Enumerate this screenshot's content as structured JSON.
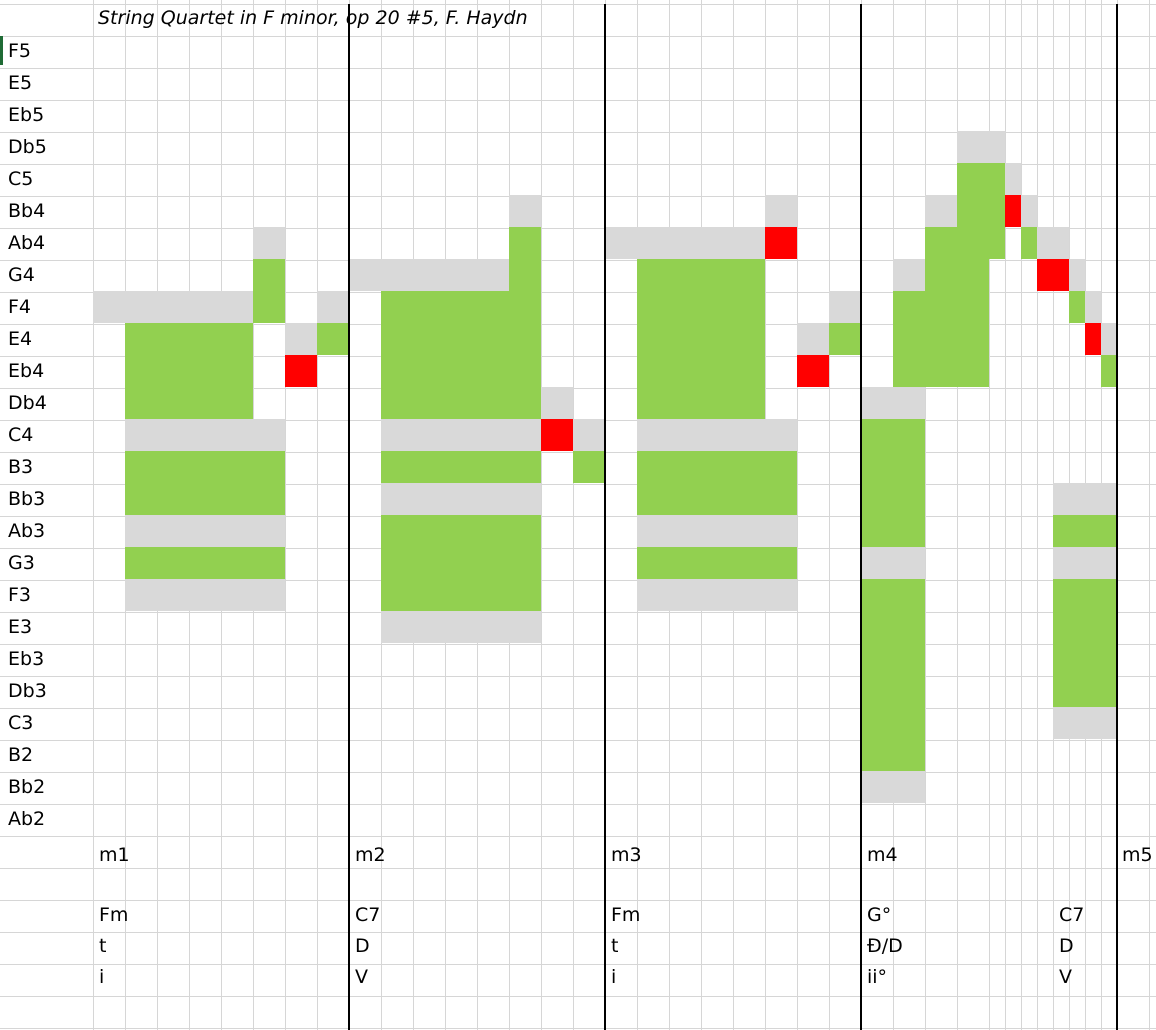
{
  "title": "String Quartet in F minor, op 20 #5, F.  Haydn",
  "colors": {
    "chord_tone": "#92d050",
    "non_chord_tone": "#ff0000",
    "held_tone": "#d9d9d9",
    "gridline": "#d6d6d6",
    "barline": "#000000",
    "selection": "#1f6b35"
  },
  "pitches": [
    "F5",
    "E5",
    "Eb5",
    "Db5",
    "C5",
    "Bb4",
    "Ab4",
    "G4",
    "F4",
    "E4",
    "Eb4",
    "Db4",
    "C4",
    "B3",
    "Bb3",
    "Ab3",
    "G3",
    "F3",
    "E3",
    "Eb3",
    "Db3",
    "C3",
    "B2",
    "Bb2",
    "Ab2"
  ],
  "measures": [
    {
      "label": "m1",
      "chord": "Fm",
      "function": "t",
      "roman": "i"
    },
    {
      "label": "m2",
      "chord": "C7",
      "function": "D",
      "roman": "V"
    },
    {
      "label": "m3",
      "chord": "Fm",
      "function": "t",
      "roman": "i"
    },
    {
      "label": "m4",
      "chord": "G°",
      "function": "Đ/D",
      "roman": "ii°"
    },
    {
      "label": "m5"
    }
  ],
  "extra_harmony": {
    "chord": "C7",
    "function": "D",
    "roman": "V"
  },
  "notes": [
    {
      "pitch": "F4",
      "start": 0,
      "end": 5,
      "kind": "held"
    },
    {
      "pitch": "E4",
      "start": 1,
      "end": 5,
      "kind": "chord"
    },
    {
      "pitch": "Eb4",
      "start": 1,
      "end": 5,
      "kind": "chord"
    },
    {
      "pitch": "Db4",
      "start": 1,
      "end": 5,
      "kind": "chord"
    },
    {
      "pitch": "C4",
      "start": 1,
      "end": 6,
      "kind": "held"
    },
    {
      "pitch": "B3",
      "start": 1,
      "end": 6,
      "kind": "chord"
    },
    {
      "pitch": "Bb3",
      "start": 1,
      "end": 6,
      "kind": "chord"
    },
    {
      "pitch": "Ab3",
      "start": 1,
      "end": 6,
      "kind": "held"
    },
    {
      "pitch": "G3",
      "start": 1,
      "end": 6,
      "kind": "chord"
    },
    {
      "pitch": "F3",
      "start": 1,
      "end": 6,
      "kind": "held"
    },
    {
      "pitch": "Ab4",
      "start": 5,
      "end": 6,
      "kind": "held"
    },
    {
      "pitch": "G4",
      "start": 5,
      "end": 6,
      "kind": "chord"
    },
    {
      "pitch": "F4",
      "start": 5,
      "end": 6,
      "kind": "chord"
    },
    {
      "pitch": "E4",
      "start": 6,
      "end": 7,
      "kind": "held"
    },
    {
      "pitch": "Eb4",
      "start": 6,
      "end": 7,
      "kind": "nonchord"
    },
    {
      "pitch": "F4",
      "start": 7,
      "end": 8,
      "kind": "held"
    },
    {
      "pitch": "E4",
      "start": 7,
      "end": 8,
      "kind": "chord"
    },
    {
      "pitch": "G4",
      "start": 8,
      "end": 13,
      "kind": "held"
    },
    {
      "pitch": "F4",
      "start": 9,
      "end": 14,
      "kind": "chord"
    },
    {
      "pitch": "E4",
      "start": 9,
      "end": 14,
      "kind": "chord"
    },
    {
      "pitch": "Eb4",
      "start": 9,
      "end": 14,
      "kind": "chord"
    },
    {
      "pitch": "Db4",
      "start": 9,
      "end": 14,
      "kind": "chord"
    },
    {
      "pitch": "C4",
      "start": 9,
      "end": 14,
      "kind": "held"
    },
    {
      "pitch": "B3",
      "start": 9,
      "end": 14,
      "kind": "chord"
    },
    {
      "pitch": "Bb3",
      "start": 9,
      "end": 14,
      "kind": "held"
    },
    {
      "pitch": "Ab3",
      "start": 9,
      "end": 14,
      "kind": "chord"
    },
    {
      "pitch": "G3",
      "start": 9,
      "end": 14,
      "kind": "chord"
    },
    {
      "pitch": "F3",
      "start": 9,
      "end": 14,
      "kind": "chord"
    },
    {
      "pitch": "E3",
      "start": 9,
      "end": 14,
      "kind": "held"
    },
    {
      "pitch": "Bb4",
      "start": 13,
      "end": 14,
      "kind": "held"
    },
    {
      "pitch": "Ab4",
      "start": 13,
      "end": 14,
      "kind": "chord"
    },
    {
      "pitch": "G4",
      "start": 13,
      "end": 14,
      "kind": "chord"
    },
    {
      "pitch": "Db4",
      "start": 14,
      "end": 15,
      "kind": "held"
    },
    {
      "pitch": "C4",
      "start": 14,
      "end": 15,
      "kind": "nonchord"
    },
    {
      "pitch": "C4",
      "start": 15,
      "end": 16,
      "kind": "held"
    },
    {
      "pitch": "B3",
      "start": 15,
      "end": 16,
      "kind": "chord"
    },
    {
      "pitch": "Ab4",
      "start": 16,
      "end": 21,
      "kind": "held"
    },
    {
      "pitch": "G4",
      "start": 17,
      "end": 21,
      "kind": "chord"
    },
    {
      "pitch": "F4",
      "start": 17,
      "end": 21,
      "kind": "chord"
    },
    {
      "pitch": "E4",
      "start": 17,
      "end": 21,
      "kind": "chord"
    },
    {
      "pitch": "Eb4",
      "start": 17,
      "end": 21,
      "kind": "chord"
    },
    {
      "pitch": "Db4",
      "start": 17,
      "end": 21,
      "kind": "chord"
    },
    {
      "pitch": "C4",
      "start": 17,
      "end": 22,
      "kind": "held"
    },
    {
      "pitch": "B3",
      "start": 17,
      "end": 22,
      "kind": "chord"
    },
    {
      "pitch": "Bb3",
      "start": 17,
      "end": 22,
      "kind": "chord"
    },
    {
      "pitch": "Ab3",
      "start": 17,
      "end": 22,
      "kind": "held"
    },
    {
      "pitch": "G3",
      "start": 17,
      "end": 22,
      "kind": "chord"
    },
    {
      "pitch": "F3",
      "start": 17,
      "end": 22,
      "kind": "held"
    },
    {
      "pitch": "Bb4",
      "start": 21,
      "end": 22,
      "kind": "held"
    },
    {
      "pitch": "Ab4",
      "start": 21,
      "end": 22,
      "kind": "nonchord"
    },
    {
      "pitch": "F4",
      "start": 23,
      "end": 24,
      "kind": "held"
    },
    {
      "pitch": "E4",
      "start": 22,
      "end": 23,
      "kind": "held"
    },
    {
      "pitch": "E4",
      "start": 23,
      "end": 24,
      "kind": "chord"
    },
    {
      "pitch": "Eb4",
      "start": 22,
      "end": 23,
      "kind": "nonchord"
    },
    {
      "pitch": "Db4",
      "start": 24,
      "end": 26,
      "kind": "held"
    },
    {
      "pitch": "C4",
      "start": 24,
      "end": 26,
      "kind": "chord"
    },
    {
      "pitch": "B3",
      "start": 24,
      "end": 26,
      "kind": "chord"
    },
    {
      "pitch": "Bb3",
      "start": 24,
      "end": 26,
      "kind": "chord"
    },
    {
      "pitch": "Ab3",
      "start": 24,
      "end": 26,
      "kind": "chord"
    },
    {
      "pitch": "G3",
      "start": 24,
      "end": 26,
      "kind": "held"
    },
    {
      "pitch": "F3",
      "start": 24,
      "end": 26,
      "kind": "chord"
    },
    {
      "pitch": "E3",
      "start": 24,
      "end": 26,
      "kind": "chord"
    },
    {
      "pitch": "Eb3",
      "start": 24,
      "end": 26,
      "kind": "chord"
    },
    {
      "pitch": "Db3",
      "start": 24,
      "end": 26,
      "kind": "chord"
    },
    {
      "pitch": "C3",
      "start": 24,
      "end": 26,
      "kind": "chord"
    },
    {
      "pitch": "B2",
      "start": 24,
      "end": 26,
      "kind": "chord"
    },
    {
      "pitch": "Bb2",
      "start": 24,
      "end": 26,
      "kind": "held"
    },
    {
      "pitch": "G4",
      "start": 25,
      "end": 26,
      "kind": "held"
    },
    {
      "pitch": "F4",
      "start": 25,
      "end": 28,
      "kind": "chord"
    },
    {
      "pitch": "E4",
      "start": 25,
      "end": 28,
      "kind": "chord"
    },
    {
      "pitch": "Eb4",
      "start": 25,
      "end": 28,
      "kind": "chord"
    },
    {
      "pitch": "Bb4",
      "start": 26,
      "end": 27,
      "kind": "held"
    },
    {
      "pitch": "Ab4",
      "start": 26,
      "end": 28,
      "kind": "chord"
    },
    {
      "pitch": "G4",
      "start": 26,
      "end": 28,
      "kind": "chord"
    },
    {
      "pitch": "Db5",
      "start": 27,
      "end": 28.5,
      "kind": "held"
    },
    {
      "pitch": "C5",
      "start": 27,
      "end": 28.5,
      "kind": "chord"
    },
    {
      "pitch": "Bb4",
      "start": 27,
      "end": 28.5,
      "kind": "chord"
    },
    {
      "pitch": "Ab4",
      "start": 28,
      "end": 28.5,
      "kind": "chord"
    },
    {
      "pitch": "C5",
      "start": 28.5,
      "end": 29,
      "kind": "held"
    },
    {
      "pitch": "Bb4",
      "start": 28.5,
      "end": 29,
      "kind": "nonchord"
    },
    {
      "pitch": "Bb4",
      "start": 29,
      "end": 29.5,
      "kind": "held"
    },
    {
      "pitch": "Ab4",
      "start": 29,
      "end": 29.5,
      "kind": "chord"
    },
    {
      "pitch": "Ab4",
      "start": 29.5,
      "end": 30.5,
      "kind": "held"
    },
    {
      "pitch": "G4",
      "start": 29.5,
      "end": 30.5,
      "kind": "nonchord"
    },
    {
      "pitch": "G4",
      "start": 30.5,
      "end": 31,
      "kind": "held"
    },
    {
      "pitch": "F4",
      "start": 30.5,
      "end": 31,
      "kind": "chord"
    },
    {
      "pitch": "F4",
      "start": 31,
      "end": 31.5,
      "kind": "held"
    },
    {
      "pitch": "E4",
      "start": 31,
      "end": 31.5,
      "kind": "nonchord"
    },
    {
      "pitch": "E4",
      "start": 31.5,
      "end": 32,
      "kind": "held"
    },
    {
      "pitch": "Eb4",
      "start": 31.5,
      "end": 32,
      "kind": "chord"
    },
    {
      "pitch": "Bb3",
      "start": 30,
      "end": 32,
      "kind": "held"
    },
    {
      "pitch": "Ab3",
      "start": 30,
      "end": 32,
      "kind": "chord"
    },
    {
      "pitch": "G3",
      "start": 30,
      "end": 32,
      "kind": "held"
    },
    {
      "pitch": "F3",
      "start": 30,
      "end": 32,
      "kind": "chord"
    },
    {
      "pitch": "E3",
      "start": 30,
      "end": 32,
      "kind": "chord"
    },
    {
      "pitch": "Eb3",
      "start": 30,
      "end": 32,
      "kind": "chord"
    },
    {
      "pitch": "Db3",
      "start": 30,
      "end": 32,
      "kind": "chord"
    },
    {
      "pitch": "C3",
      "start": 30,
      "end": 32,
      "kind": "held"
    }
  ]
}
